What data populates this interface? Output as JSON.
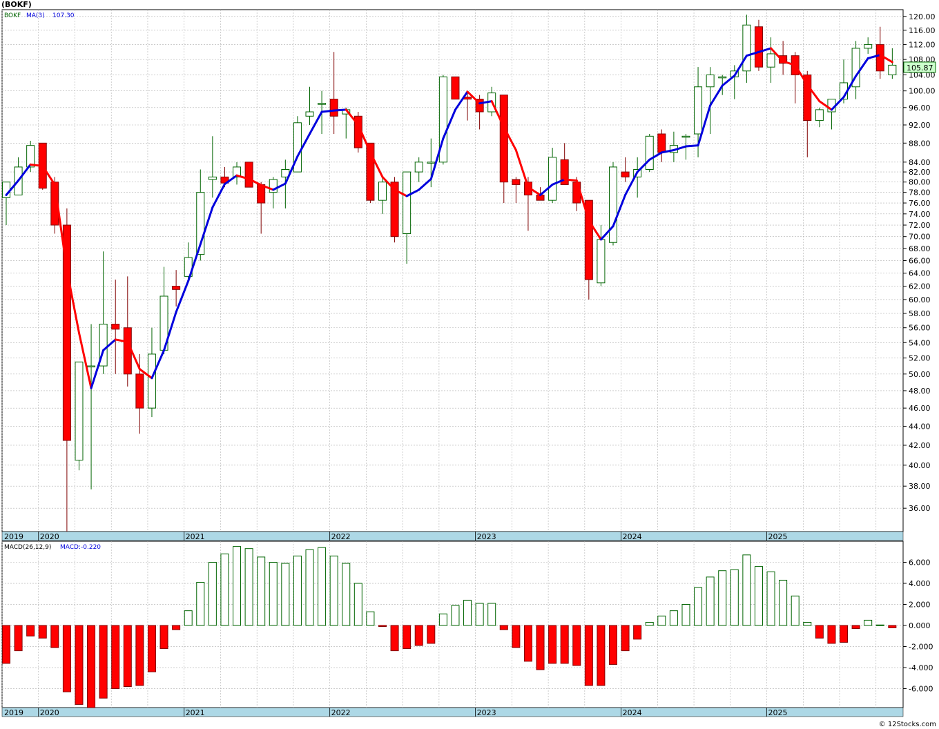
{
  "page": {
    "title": "(BOKF)",
    "footer": "© 12Stocks.com"
  },
  "colors": {
    "up_candle": "#006400",
    "down_candle": "#ff0000",
    "ma_up": "#0000dd",
    "ma_down": "#ff0000",
    "grid": "#b0b0b0",
    "axis_band": "#add8e6",
    "price_box": "#ccffcc"
  },
  "chart_data": [
    {
      "type": "candlestick",
      "ticker_label": "BOKF",
      "ma_label": "MA(3)",
      "ma_value": "107.30",
      "last_price_label": "105.87",
      "y_scale": "log",
      "ylim": [
        34,
        122
      ],
      "yticks": [
        "120.00",
        "116.00",
        "112.00",
        "108.00",
        "104.00",
        "100.00",
        "96.00",
        "92.00",
        "88.00",
        "84.00",
        "82.00",
        "80.00",
        "78.00",
        "76.00",
        "74.00",
        "72.00",
        "70.00",
        "68.00",
        "66.00",
        "64.00",
        "62.00",
        "60.00",
        "58.00",
        "56.00",
        "54.00",
        "52.00",
        "50.00",
        "48.00",
        "46.00",
        "44.00",
        "42.00",
        "40.00",
        "38.00",
        "36.00"
      ],
      "x_labels": [
        "2019",
        "2020",
        "2021",
        "2022",
        "2023",
        "2024",
        "2025"
      ],
      "x_label_month_index": [
        0,
        3,
        15,
        27,
        39,
        51,
        63
      ],
      "start": "2019-10",
      "candles": [
        {
          "o": 77,
          "h": 80,
          "l": 72,
          "c": 80
        },
        {
          "o": 77.5,
          "h": 85,
          "l": 77.5,
          "c": 83
        },
        {
          "o": 83,
          "h": 88.5,
          "l": 82,
          "c": 87.5
        },
        {
          "o": 88,
          "h": 88,
          "l": 78.5,
          "c": 78.8
        },
        {
          "o": 80,
          "h": 81,
          "l": 70.5,
          "c": 72
        },
        {
          "o": 72,
          "h": 75,
          "l": 34,
          "c": 42.5
        },
        {
          "o": 40.5,
          "h": 51.5,
          "l": 39.5,
          "c": 51.5
        },
        {
          "o": 51,
          "h": 56.5,
          "l": 37.7,
          "c": 51
        },
        {
          "o": 51,
          "h": 67.5,
          "l": 50,
          "c": 56.5
        },
        {
          "o": 56.5,
          "h": 63,
          "l": 50,
          "c": 55.8
        },
        {
          "o": 56,
          "h": 63.5,
          "l": 48.5,
          "c": 50
        },
        {
          "o": 50,
          "h": 52.5,
          "l": 43.2,
          "c": 46
        },
        {
          "o": 46,
          "h": 56,
          "l": 45,
          "c": 52.5
        },
        {
          "o": 53,
          "h": 65,
          "l": 52.5,
          "c": 60.5
        },
        {
          "o": 62,
          "h": 64.5,
          "l": 59,
          "c": 61.5
        },
        {
          "o": 63.5,
          "h": 69,
          "l": 63,
          "c": 66.5
        },
        {
          "o": 67,
          "h": 82.5,
          "l": 66,
          "c": 78
        },
        {
          "o": 80.5,
          "h": 89.5,
          "l": 77,
          "c": 81
        },
        {
          "o": 81,
          "h": 83,
          "l": 79,
          "c": 79.8
        },
        {
          "o": 81,
          "h": 84,
          "l": 79.5,
          "c": 83
        },
        {
          "o": 84,
          "h": 84,
          "l": 79,
          "c": 79
        },
        {
          "o": 79.5,
          "h": 80,
          "l": 70.5,
          "c": 76
        },
        {
          "o": 78,
          "h": 81,
          "l": 75,
          "c": 80.5
        },
        {
          "o": 81,
          "h": 84.5,
          "l": 75,
          "c": 82.5
        },
        {
          "o": 82,
          "h": 94,
          "l": 82,
          "c": 92.5
        },
        {
          "o": 94,
          "h": 101,
          "l": 92,
          "c": 95
        },
        {
          "o": 97,
          "h": 100,
          "l": 90,
          "c": 97
        },
        {
          "o": 98,
          "h": 110,
          "l": 90,
          "c": 94
        },
        {
          "o": 94.5,
          "h": 96,
          "l": 89,
          "c": 95.5
        },
        {
          "o": 94,
          "h": 95,
          "l": 86,
          "c": 87
        },
        {
          "o": 88,
          "h": 88,
          "l": 76,
          "c": 76.5
        },
        {
          "o": 76.5,
          "h": 81,
          "l": 74,
          "c": 80
        },
        {
          "o": 80,
          "h": 81,
          "l": 69,
          "c": 70
        },
        {
          "o": 70.5,
          "h": 82,
          "l": 65.5,
          "c": 82
        },
        {
          "o": 82,
          "h": 85,
          "l": 80,
          "c": 84
        },
        {
          "o": 84,
          "h": 89,
          "l": 79,
          "c": 84
        },
        {
          "o": 84,
          "h": 104,
          "l": 83.5,
          "c": 103.5
        },
        {
          "o": 103.5,
          "h": 103.5,
          "l": 98,
          "c": 98
        },
        {
          "o": 98.5,
          "h": 99.5,
          "l": 93,
          "c": 98
        },
        {
          "o": 98,
          "h": 99,
          "l": 91,
          "c": 95
        },
        {
          "o": 95,
          "h": 101,
          "l": 94,
          "c": 99.5
        },
        {
          "o": 99,
          "h": 99,
          "l": 76,
          "c": 80
        },
        {
          "o": 80.5,
          "h": 81,
          "l": 76,
          "c": 79.5
        },
        {
          "o": 80,
          "h": 81,
          "l": 71,
          "c": 77.5
        },
        {
          "o": 77.5,
          "h": 79,
          "l": 76.5,
          "c": 76.5
        },
        {
          "o": 76.5,
          "h": 87,
          "l": 76,
          "c": 85
        },
        {
          "o": 84.5,
          "h": 88,
          "l": 79.5,
          "c": 79.5
        },
        {
          "o": 80,
          "h": 81,
          "l": 74.5,
          "c": 76
        },
        {
          "o": 76.5,
          "h": 76.5,
          "l": 60,
          "c": 63
        },
        {
          "o": 62.5,
          "h": 72,
          "l": 62,
          "c": 69.5
        },
        {
          "o": 69,
          "h": 84,
          "l": 68.5,
          "c": 83
        },
        {
          "o": 82,
          "h": 85,
          "l": 80,
          "c": 81
        },
        {
          "o": 81,
          "h": 85,
          "l": 77,
          "c": 82.5
        },
        {
          "o": 82.5,
          "h": 90,
          "l": 82,
          "c": 89.5
        },
        {
          "o": 90,
          "h": 91,
          "l": 84,
          "c": 86
        },
        {
          "o": 86,
          "h": 90.5,
          "l": 84,
          "c": 87.5
        },
        {
          "o": 89.5,
          "h": 90,
          "l": 84.5,
          "c": 89.5
        },
        {
          "o": 90,
          "h": 106,
          "l": 85,
          "c": 101
        },
        {
          "o": 101,
          "h": 106,
          "l": 90,
          "c": 104
        },
        {
          "o": 103.5,
          "h": 104,
          "l": 99,
          "c": 103.5
        },
        {
          "o": 103.5,
          "h": 106.5,
          "l": 98,
          "c": 105
        },
        {
          "o": 105,
          "h": 120.5,
          "l": 102,
          "c": 117.5
        },
        {
          "o": 117,
          "h": 119,
          "l": 105,
          "c": 106
        },
        {
          "o": 106,
          "h": 114,
          "l": 102,
          "c": 109.5
        },
        {
          "o": 109,
          "h": 113,
          "l": 104,
          "c": 107
        },
        {
          "o": 109,
          "h": 110,
          "l": 97,
          "c": 104
        },
        {
          "o": 104,
          "h": 105,
          "l": 85,
          "c": 93
        },
        {
          "o": 93,
          "h": 96,
          "l": 91.5,
          "c": 95.5
        },
        {
          "o": 95,
          "h": 98,
          "l": 91,
          "c": 98
        },
        {
          "o": 98,
          "h": 108,
          "l": 97,
          "c": 102
        },
        {
          "o": 101,
          "h": 113,
          "l": 98,
          "c": 111
        },
        {
          "o": 111,
          "h": 114,
          "l": 109.5,
          "c": 112
        },
        {
          "o": 112,
          "h": 117,
          "l": 103,
          "c": 105
        },
        {
          "o": 104,
          "h": 111,
          "l": 103,
          "c": 106.5
        }
      ],
      "ma": [
        77.5,
        80.3,
        83.5,
        83.2,
        79.5,
        64.5,
        55.3,
        48.3,
        53,
        54.4,
        54.1,
        50.6,
        49.5,
        53,
        58.2,
        62.8,
        68.7,
        75.2,
        79.6,
        81.3,
        80.6,
        79.4,
        78.5,
        79.7,
        85.2,
        90,
        95,
        95.3,
        95.5,
        92,
        86,
        81,
        78.5,
        77.3,
        78.5,
        80.6,
        89,
        95.5,
        99.8,
        97,
        97.5,
        91.5,
        86.5,
        79,
        77.5,
        79.5,
        80.5,
        80.3,
        72.8,
        69.5,
        71.8,
        77.5,
        82,
        84.5,
        86,
        86.5,
        87.3,
        87.5,
        96.5,
        101.3,
        103.8,
        109,
        110,
        111,
        107.5,
        106.5,
        101.5,
        97.5,
        95.5,
        98.5,
        103.7,
        108.3,
        109.2,
        107.3
      ],
      "series": [
        {
          "name": "BOKF",
          "kind": "candles"
        },
        {
          "name": "MA(3)",
          "kind": "line"
        }
      ]
    },
    {
      "type": "bar",
      "indicator_label": "MACD(26,12,9)",
      "value_label": "MACD:-0.220",
      "ylim": [
        -7.8,
        8.0
      ],
      "yticks": [
        "6.000",
        "4.000",
        "2.000",
        "0.000",
        "-2.000",
        "-4.000",
        "-6.000"
      ],
      "x_labels": [
        "2019",
        "2020",
        "2021",
        "2022",
        "2023",
        "2024",
        "2025"
      ],
      "values": [
        -3.6,
        -2.4,
        -1.0,
        -1.2,
        -2.1,
        -6.3,
        -7.5,
        -7.8,
        -6.9,
        -6.0,
        -5.8,
        -5.7,
        -4.4,
        -2.2,
        -0.4,
        1.4,
        4.1,
        6.0,
        6.8,
        7.5,
        7.3,
        6.5,
        6.0,
        5.9,
        6.6,
        7.2,
        7.4,
        6.6,
        5.9,
        4.0,
        1.3,
        -0.1,
        -2.4,
        -2.2,
        -1.9,
        -1.7,
        1.1,
        1.9,
        2.4,
        2.1,
        2.1,
        -0.4,
        -2.1,
        -3.4,
        -4.2,
        -3.6,
        -3.6,
        -3.8,
        -5.7,
        -5.7,
        -3.7,
        -2.4,
        -1.3,
        0.3,
        0.9,
        1.4,
        2.0,
        3.6,
        4.6,
        5.2,
        5.3,
        6.7,
        5.6,
        5.1,
        4.3,
        2.8,
        0.3,
        -1.2,
        -1.7,
        -1.6,
        -0.3,
        0.5,
        0.05,
        -0.22
      ]
    }
  ]
}
